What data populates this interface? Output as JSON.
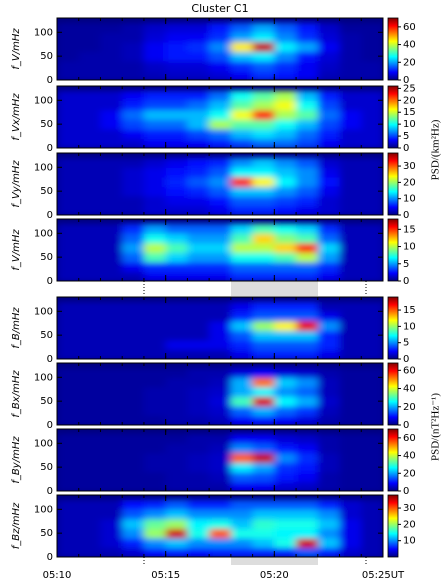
{
  "chart_data": [
    {
      "type": "heatmap",
      "title": "Cluster C1",
      "ylabel": "f_V/mHz",
      "xlim": [
        "05:10",
        "05:25"
      ],
      "ylim": [
        0,
        130
      ],
      "yticks": [
        0,
        50,
        100
      ],
      "zlim": [
        0,
        70
      ],
      "zticks": [
        0,
        20,
        40,
        60
      ],
      "x_bins": [
        "05:10",
        "05:11",
        "05:12",
        "05:13",
        "05:14",
        "05:15",
        "05:16",
        "05:17",
        "05:18",
        "05:19",
        "05:20",
        "05:21",
        "05:22",
        "05:23",
        "05:24",
        "05:25"
      ],
      "y_bins": [
        0,
        20,
        40,
        60,
        80,
        100,
        120
      ],
      "z": [
        [
          3,
          3,
          3,
          3,
          4,
          5,
          5,
          6,
          8,
          12,
          10,
          8,
          4,
          3,
          3
        ],
        [
          3,
          3,
          3,
          3,
          5,
          6,
          6,
          8,
          12,
          15,
          12,
          8,
          5,
          3,
          3
        ],
        [
          2,
          3,
          3,
          4,
          8,
          10,
          10,
          14,
          22,
          25,
          18,
          10,
          6,
          3,
          2
        ],
        [
          2,
          2,
          3,
          4,
          8,
          10,
          12,
          18,
          45,
          65,
          25,
          20,
          8,
          3,
          2
        ],
        [
          2,
          2,
          3,
          3,
          6,
          8,
          8,
          12,
          20,
          25,
          18,
          12,
          6,
          3,
          2
        ],
        [
          2,
          2,
          2,
          3,
          5,
          6,
          6,
          10,
          15,
          20,
          15,
          10,
          5,
          2,
          2
        ]
      ]
    },
    {
      "type": "heatmap",
      "ylabel": "f_Vx/mHz",
      "colorbar_label": "PSD/(km²Hz)",
      "xlim": [
        "05:10",
        "05:25"
      ],
      "ylim": [
        0,
        130
      ],
      "yticks": [
        0,
        50,
        100
      ],
      "zlim": [
        0,
        26
      ],
      "zticks": [
        0,
        5,
        10,
        15,
        20,
        25
      ],
      "x_bins": [
        "05:10",
        "05:11",
        "05:12",
        "05:13",
        "05:14",
        "05:15",
        "05:16",
        "05:17",
        "05:18",
        "05:19",
        "05:20",
        "05:21",
        "05:22",
        "05:23",
        "05:24",
        "05:25"
      ],
      "y_bins": [
        0,
        20,
        40,
        60,
        80,
        100,
        120
      ],
      "z": [
        [
          2,
          2,
          2,
          2,
          3,
          3,
          3,
          4,
          5,
          6,
          6,
          5,
          3,
          2,
          2
        ],
        [
          2,
          2,
          2,
          3,
          4,
          4,
          5,
          6,
          8,
          9,
          8,
          6,
          4,
          2,
          2
        ],
        [
          2,
          2,
          3,
          5,
          6,
          6,
          8,
          14,
          12,
          12,
          10,
          8,
          5,
          3,
          2
        ],
        [
          2,
          2,
          3,
          6,
          8,
          8,
          8,
          10,
          16,
          22,
          14,
          12,
          6,
          3,
          2
        ],
        [
          2,
          2,
          2,
          4,
          5,
          5,
          6,
          8,
          12,
          14,
          16,
          10,
          5,
          2,
          2
        ],
        [
          2,
          2,
          2,
          3,
          4,
          4,
          4,
          6,
          10,
          12,
          14,
          8,
          4,
          2,
          2
        ]
      ]
    },
    {
      "type": "heatmap",
      "ylabel": "f_Vy/mHz",
      "xlim": [
        "05:10",
        "05:25"
      ],
      "ylim": [
        0,
        130
      ],
      "yticks": [
        0,
        50,
        100
      ],
      "zlim": [
        0,
        38
      ],
      "zticks": [
        0,
        10,
        20,
        30
      ],
      "x_bins": [
        "05:10",
        "05:11",
        "05:12",
        "05:13",
        "05:14",
        "05:15",
        "05:16",
        "05:17",
        "05:18",
        "05:19",
        "05:20",
        "05:21",
        "05:22",
        "05:23",
        "05:24",
        "05:25"
      ],
      "y_bins": [
        0,
        20,
        40,
        60,
        80,
        100,
        120
      ],
      "z": [
        [
          2,
          2,
          2,
          2,
          3,
          3,
          3,
          4,
          6,
          6,
          5,
          4,
          3,
          2,
          2
        ],
        [
          2,
          2,
          2,
          2,
          3,
          4,
          4,
          5,
          8,
          8,
          7,
          6,
          3,
          2,
          2
        ],
        [
          2,
          2,
          2,
          3,
          4,
          5,
          6,
          8,
          12,
          12,
          10,
          8,
          4,
          2,
          2
        ],
        [
          2,
          2,
          2,
          3,
          4,
          6,
          8,
          10,
          32,
          24,
          14,
          10,
          5,
          2,
          2
        ],
        [
          2,
          2,
          2,
          3,
          4,
          5,
          6,
          8,
          14,
          14,
          12,
          10,
          4,
          2,
          2
        ],
        [
          2,
          2,
          2,
          2,
          3,
          4,
          5,
          6,
          10,
          12,
          10,
          8,
          3,
          2,
          2
        ]
      ]
    },
    {
      "type": "heatmap",
      "ylabel": "f_V/mHz",
      "xlim": [
        "05:10",
        "05:25"
      ],
      "ylim": [
        0,
        130
      ],
      "yticks": [
        0,
        50,
        100
      ],
      "zlim": [
        0,
        18
      ],
      "zticks": [
        0,
        5,
        10,
        15
      ],
      "x_bins": [
        "05:10",
        "05:11",
        "05:12",
        "05:13",
        "05:14",
        "05:15",
        "05:16",
        "05:17",
        "05:18",
        "05:19",
        "05:20",
        "05:21",
        "05:22",
        "05:23",
        "05:24",
        "05:25"
      ],
      "y_bins": [
        0,
        20,
        40,
        60,
        80,
        100,
        120
      ],
      "z": [
        [
          1,
          1,
          1,
          1,
          2,
          2,
          2,
          2,
          3,
          3,
          3,
          3,
          2,
          1,
          1
        ],
        [
          1,
          1,
          1,
          2,
          3,
          3,
          3,
          3,
          4,
          4,
          4,
          4,
          3,
          1,
          1
        ],
        [
          1,
          1,
          1,
          4,
          8,
          6,
          5,
          5,
          7,
          7,
          8,
          10,
          5,
          1,
          1
        ],
        [
          1,
          1,
          1,
          5,
          10,
          8,
          6,
          6,
          10,
          10,
          12,
          15,
          6,
          1,
          1
        ],
        [
          1,
          1,
          1,
          4,
          7,
          6,
          5,
          5,
          8,
          12,
          9,
          8,
          4,
          1,
          1
        ],
        [
          1,
          1,
          1,
          3,
          5,
          4,
          4,
          4,
          6,
          8,
          7,
          6,
          3,
          1,
          1
        ]
      ]
    },
    {
      "type": "heatmap",
      "ylabel": "f_B/mHz",
      "xlim": [
        "05:10",
        "05:25"
      ],
      "ylim": [
        0,
        130
      ],
      "yticks": [
        0,
        50,
        100
      ],
      "zlim": [
        0,
        19
      ],
      "zticks": [
        0,
        5,
        10,
        15
      ],
      "x_bins": [
        "05:10",
        "05:11",
        "05:12",
        "05:13",
        "05:14",
        "05:15",
        "05:16",
        "05:17",
        "05:18",
        "05:19",
        "05:20",
        "05:21",
        "05:22",
        "05:23",
        "05:24",
        "05:25"
      ],
      "y_bins": [
        0,
        20,
        40,
        60,
        80,
        100,
        120
      ],
      "z": [
        [
          1,
          1,
          1,
          1,
          1,
          1,
          1,
          1,
          2,
          3,
          3,
          3,
          2,
          1,
          1
        ],
        [
          1,
          1,
          1,
          1,
          1,
          2,
          2,
          2,
          3,
          4,
          4,
          4,
          3,
          1,
          1
        ],
        [
          1,
          1,
          1,
          1,
          1,
          1,
          1,
          2,
          4,
          6,
          6,
          6,
          3,
          1,
          1
        ],
        [
          1,
          1,
          1,
          1,
          1,
          1,
          1,
          2,
          6,
          10,
          12,
          17,
          5,
          1,
          1
        ],
        [
          1,
          1,
          1,
          1,
          1,
          1,
          1,
          1,
          3,
          4,
          4,
          4,
          2,
          1,
          1
        ],
        [
          1,
          1,
          1,
          1,
          1,
          1,
          1,
          1,
          2,
          3,
          3,
          3,
          1,
          1,
          1
        ]
      ]
    },
    {
      "type": "heatmap",
      "ylabel": "f_Bx/mHz",
      "colorbar_label": "PSD/(nT²Hz⁻¹)",
      "xlim": [
        "05:10",
        "05:25"
      ],
      "ylim": [
        0,
        130
      ],
      "yticks": [
        0,
        50,
        100
      ],
      "zlim": [
        0,
        68
      ],
      "zticks": [
        0,
        20,
        40,
        60
      ],
      "x_bins": [
        "05:10",
        "05:11",
        "05:12",
        "05:13",
        "05:14",
        "05:15",
        "05:16",
        "05:17",
        "05:18",
        "05:19",
        "05:20",
        "05:21",
        "05:22",
        "05:23",
        "05:24",
        "05:25"
      ],
      "y_bins": [
        0,
        20,
        40,
        60,
        80,
        100,
        120
      ],
      "z": [
        [
          2,
          2,
          2,
          2,
          2,
          3,
          3,
          4,
          8,
          10,
          8,
          6,
          3,
          2,
          2
        ],
        [
          2,
          2,
          2,
          2,
          3,
          3,
          4,
          5,
          15,
          20,
          15,
          12,
          4,
          2,
          2
        ],
        [
          2,
          2,
          2,
          2,
          3,
          3,
          4,
          6,
          30,
          62,
          25,
          20,
          5,
          2,
          2
        ],
        [
          2,
          2,
          2,
          2,
          3,
          3,
          4,
          5,
          20,
          25,
          18,
          15,
          4,
          2,
          2
        ],
        [
          2,
          2,
          2,
          2,
          2,
          3,
          3,
          4,
          20,
          52,
          22,
          18,
          4,
          2,
          2
        ],
        [
          2,
          2,
          2,
          2,
          2,
          2,
          3,
          3,
          6,
          8,
          6,
          5,
          3,
          2,
          2
        ]
      ]
    },
    {
      "type": "heatmap",
      "ylabel": "f_By/mHz",
      "xlim": [
        "05:10",
        "05:25"
      ],
      "ylim": [
        0,
        130
      ],
      "yticks": [
        0,
        50,
        100
      ],
      "zlim": [
        0,
        70
      ],
      "zticks": [
        0,
        20,
        40,
        60
      ],
      "x_bins": [
        "05:10",
        "05:11",
        "05:12",
        "05:13",
        "05:14",
        "05:15",
        "05:16",
        "05:17",
        "05:18",
        "05:19",
        "05:20",
        "05:21",
        "05:22",
        "05:23",
        "05:24",
        "05:25"
      ],
      "y_bins": [
        0,
        20,
        40,
        60,
        80,
        100,
        120
      ],
      "z": [
        [
          2,
          2,
          2,
          2,
          2,
          3,
          3,
          3,
          8,
          8,
          6,
          5,
          3,
          2,
          2
        ],
        [
          2,
          2,
          2,
          2,
          2,
          3,
          3,
          4,
          15,
          14,
          10,
          8,
          3,
          2,
          2
        ],
        [
          2,
          2,
          2,
          2,
          3,
          3,
          4,
          5,
          25,
          20,
          12,
          10,
          4,
          2,
          2
        ],
        [
          2,
          2,
          2,
          2,
          3,
          3,
          4,
          5,
          55,
          65,
          18,
          12,
          4,
          2,
          2
        ],
        [
          2,
          2,
          2,
          2,
          2,
          3,
          3,
          4,
          18,
          15,
          10,
          8,
          3,
          2,
          2
        ],
        [
          2,
          2,
          2,
          2,
          2,
          2,
          3,
          3,
          8,
          8,
          6,
          5,
          3,
          2,
          2
        ]
      ]
    },
    {
      "type": "heatmap",
      "ylabel": "f_Bz/mHz",
      "xlim": [
        "05:10",
        "05:25"
      ],
      "xticks": [
        "05:10",
        "05:15",
        "05:20",
        {
          "value": "05:25",
          "label": "05:25UT"
        }
      ],
      "ylim": [
        0,
        130
      ],
      "yticks": [
        0,
        50,
        100
      ],
      "zlim": [
        0,
        38
      ],
      "zticks": [
        10,
        20,
        30
      ],
      "x_bins": [
        "05:10",
        "05:11",
        "05:12",
        "05:13",
        "05:14",
        "05:15",
        "05:16",
        "05:17",
        "05:18",
        "05:19",
        "05:20",
        "05:21",
        "05:22",
        "05:23",
        "05:24",
        "05:25"
      ],
      "y_bins": [
        0,
        20,
        40,
        60,
        80,
        100,
        120
      ],
      "z": [
        [
          2,
          2,
          2,
          3,
          5,
          6,
          5,
          6,
          6,
          6,
          6,
          8,
          6,
          3,
          2
        ],
        [
          2,
          2,
          3,
          6,
          10,
          12,
          10,
          10,
          10,
          12,
          15,
          35,
          12,
          4,
          2
        ],
        [
          2,
          2,
          3,
          10,
          20,
          35,
          15,
          30,
          15,
          15,
          14,
          14,
          10,
          4,
          2
        ],
        [
          2,
          2,
          3,
          12,
          18,
          20,
          14,
          15,
          12,
          16,
          15,
          15,
          12,
          4,
          2
        ],
        [
          2,
          2,
          2,
          8,
          10,
          12,
          10,
          10,
          10,
          12,
          12,
          12,
          10,
          3,
          2
        ],
        [
          2,
          2,
          2,
          5,
          6,
          8,
          6,
          6,
          8,
          8,
          8,
          8,
          6,
          3,
          2
        ]
      ]
    }
  ]
}
